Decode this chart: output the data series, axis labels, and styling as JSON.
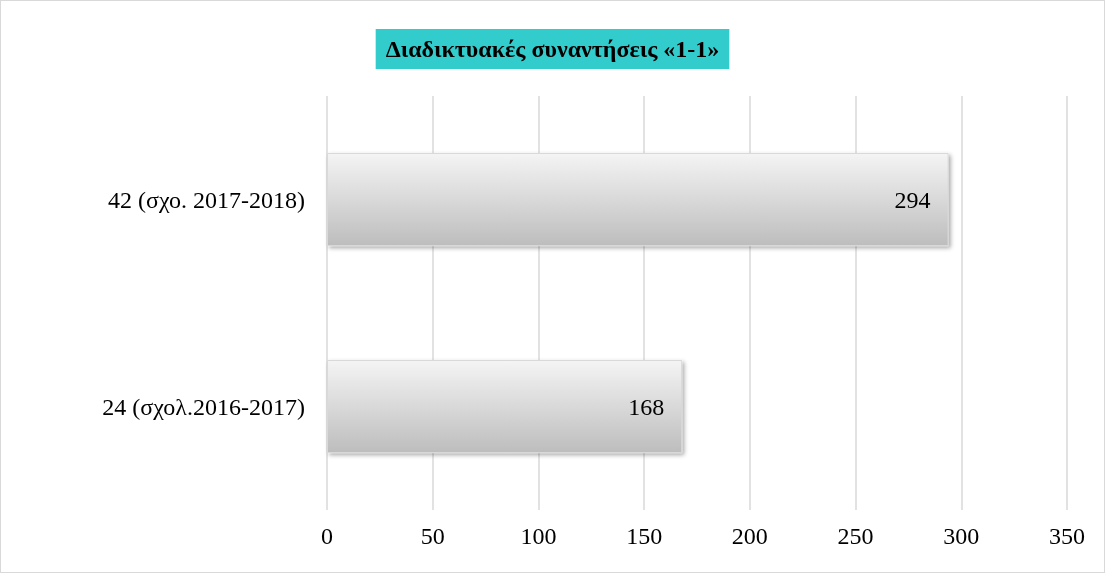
{
  "chart_data": {
    "type": "bar",
    "orientation": "horizontal",
    "title": "Διαδικτυακές συναντήσεις «1-1»",
    "categories": [
      "42 (σχο. 2017-2018)",
      "24 (σχολ.2016-2017)"
    ],
    "values": [
      294,
      168
    ],
    "color": "#d9d9d9",
    "xlim": [
      0,
      350
    ],
    "xticks": [
      0,
      50,
      100,
      150,
      200,
      250,
      300,
      350
    ],
    "grid": "x",
    "data_labels": true
  }
}
